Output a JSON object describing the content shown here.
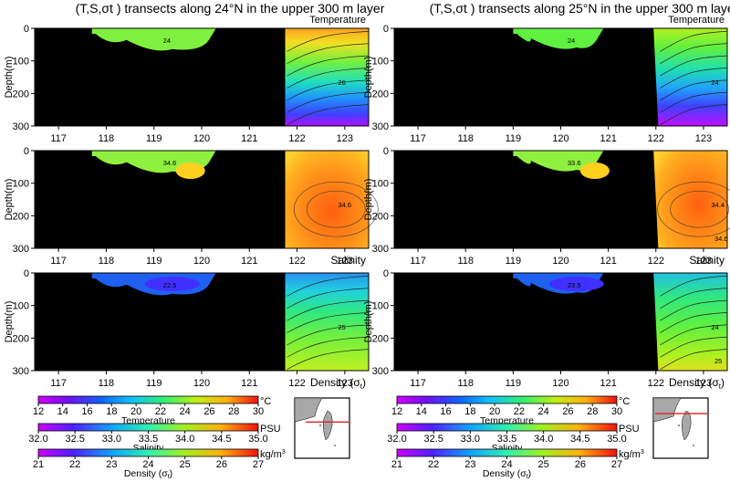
{
  "titles": {
    "left": "(T,S,σt ) transects along 24°N in the upper 300 m layer",
    "right": "(T,S,σt ) transects along 25°N in the upper 300 m layer"
  },
  "panel_labels": [
    "Temperature",
    "Salinity",
    "Density (σt)"
  ],
  "ylabel": "Depth(m)",
  "chart_data": [
    {
      "type": "heatmap",
      "title": "(T,S,σt ) transects along 24°N in the upper 300 m layer",
      "section": "24°N",
      "panels": [
        {
          "label": "Temperature",
          "xlim": [
            116.5,
            123.5
          ],
          "xticks": [
            117,
            118,
            119,
            120,
            121,
            122,
            123
          ],
          "ylim": [
            300,
            0
          ],
          "yticks": [
            0,
            100,
            200,
            300
          ],
          "ylabel": "Depth(m)",
          "contour_labels": [
            24,
            26
          ]
        },
        {
          "label": "Salinity",
          "xlim": [
            116.5,
            123.5
          ],
          "xticks": [
            117,
            118,
            119,
            120,
            121,
            122,
            123
          ],
          "ylim": [
            300,
            0
          ],
          "yticks": [
            0,
            100,
            200,
            300
          ],
          "ylabel": "Depth(m)",
          "contour_labels": [
            34.6,
            34.6
          ]
        },
        {
          "label": "Density (σt)",
          "xlim": [
            116.5,
            123.5
          ],
          "xticks": [
            117,
            118,
            119,
            120,
            121,
            122,
            123
          ],
          "ylim": [
            300,
            0
          ],
          "yticks": [
            0,
            100,
            200,
            300
          ],
          "ylabel": "Depth(m)",
          "contour_labels": [
            22.5,
            25
          ]
        }
      ]
    },
    {
      "type": "heatmap",
      "title": "(T,S,σt ) transects along 25°N in the upper 300 m layer",
      "section": "25°N",
      "panels": [
        {
          "label": "Temperature",
          "xlim": [
            116.5,
            123.5
          ],
          "xticks": [
            117,
            118,
            119,
            120,
            121,
            122,
            123
          ],
          "ylim": [
            300,
            0
          ],
          "yticks": [
            0,
            100,
            200,
            300
          ],
          "ylabel": "Depth(m)",
          "contour_labels": [
            24,
            24
          ]
        },
        {
          "label": "Salinity",
          "xlim": [
            116.5,
            123.5
          ],
          "xticks": [
            117,
            118,
            119,
            120,
            121,
            122,
            123
          ],
          "ylim": [
            300,
            0
          ],
          "yticks": [
            0,
            100,
            200,
            300
          ],
          "ylabel": "Depth(m)",
          "contour_labels": [
            33.6,
            34.4,
            34.6
          ]
        },
        {
          "label": "Density (σt)",
          "xlim": [
            116.5,
            123.5
          ],
          "xticks": [
            117,
            118,
            119,
            120,
            121,
            122,
            123
          ],
          "ylim": [
            300,
            0
          ],
          "yticks": [
            0,
            100,
            200,
            300
          ],
          "ylabel": "Depth(m)",
          "contour_labels": [
            23.5,
            24,
            25
          ]
        }
      ]
    }
  ],
  "colorbars": [
    {
      "label": "Temperature",
      "unit": "°C",
      "ticks": [
        "12",
        "14",
        "16",
        "18",
        "20",
        "22",
        "24",
        "26",
        "28",
        "30"
      ]
    },
    {
      "label": "Salinity",
      "unit": "PSU",
      "ticks": [
        "32.0",
        "32.5",
        "33.0",
        "33.5",
        "34.0",
        "34.5",
        "35.0"
      ]
    },
    {
      "label": "Density (σt)",
      "unit": "kg/m³",
      "ticks": [
        "21",
        "22",
        "23",
        "24",
        "25",
        "26",
        "27"
      ]
    }
  ],
  "colors": {
    "land": "#000000",
    "section_line": "#e02020",
    "map_land": "#a8a8a8"
  }
}
